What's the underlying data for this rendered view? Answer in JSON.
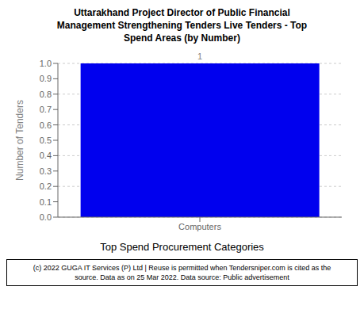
{
  "chart_data": {
    "type": "bar",
    "title": "Uttarakhand Project Director of Public Financial\nManagement Strengthening Tenders Live Tenders - Top\nSpend Areas (by Number)",
    "categories": [
      "Computers"
    ],
    "values": [
      1
    ],
    "color": "#0000ee",
    "ylabel": "Number of Tenders",
    "xlabel": "Top Spend Procurement Categories",
    "ylim": [
      0,
      1
    ],
    "yticks": [
      {
        "value": 0,
        "label": "0.0"
      },
      0.1,
      0.2,
      0.3,
      0.4,
      0.5,
      0.6,
      0.7,
      0.8,
      0.9,
      {
        "value": 1,
        "label": "1.0"
      }
    ],
    "grid": true,
    "data_labels": true,
    "footnote": "(c) 2022 GUGA IT Services (P) Ltd | Reuse is permitted when Tendersniper.com is cited as the\nsource. Data as on 25 Mar 2022. Data source: Public advertisement"
  }
}
